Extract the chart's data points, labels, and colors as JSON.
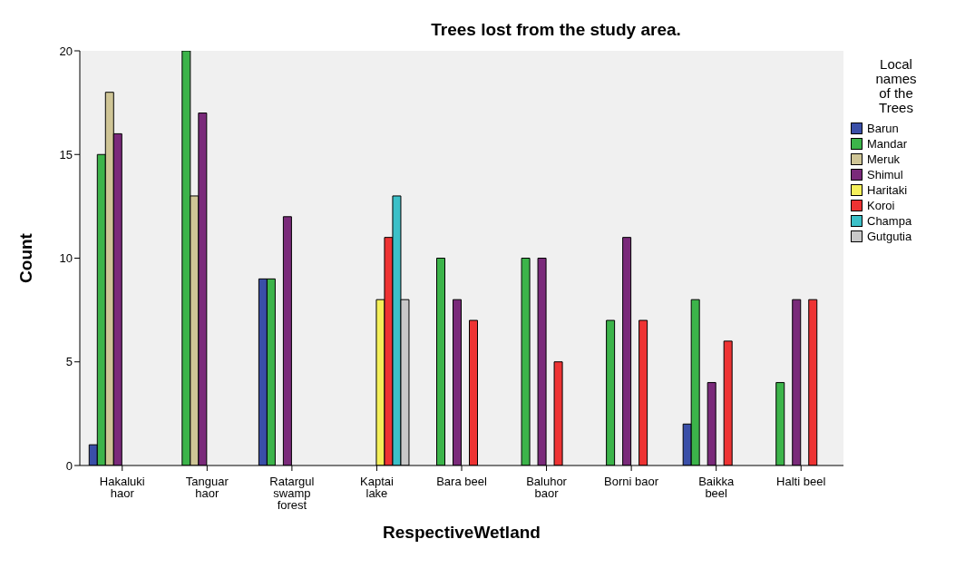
{
  "chart_data": {
    "type": "bar",
    "title": "Trees lost from the study area.",
    "xlabel": "RespectiveWetland",
    "ylabel": "Count",
    "legend_title": "Local names of the Trees",
    "categories": [
      "Hakaluki haor",
      "Tanguar haor",
      "Ratargul swamp forest",
      "Kaptai lake",
      "Bara beel",
      "Baluhor baor",
      "Borni baor",
      "Baikka beel",
      "Halti beel"
    ],
    "series": [
      {
        "name": "Barun",
        "color": "#3a4fa8",
        "values": [
          1,
          null,
          9,
          null,
          null,
          null,
          null,
          2,
          null
        ]
      },
      {
        "name": "Mandar",
        "color": "#3cb44a",
        "values": [
          15,
          20,
          9,
          null,
          10,
          10,
          7,
          8,
          4
        ]
      },
      {
        "name": "Meruk",
        "color": "#cfc596",
        "values": [
          18,
          13,
          null,
          null,
          null,
          null,
          null,
          null,
          null
        ]
      },
      {
        "name": "Shimul",
        "color": "#7a2a7a",
        "values": [
          16,
          17,
          12,
          null,
          8,
          10,
          11,
          4,
          8
        ]
      },
      {
        "name": "Haritaki",
        "color": "#f5f05a",
        "values": [
          null,
          null,
          null,
          8,
          null,
          null,
          null,
          null,
          null
        ]
      },
      {
        "name": "Koroi",
        "color": "#ee3333",
        "values": [
          null,
          null,
          null,
          11,
          7,
          5,
          7,
          6,
          8
        ]
      },
      {
        "name": "Champa",
        "color": "#3cc0c8",
        "values": [
          null,
          null,
          null,
          13,
          null,
          null,
          null,
          null,
          null
        ]
      },
      {
        "name": "Gutgutia",
        "color": "#c8c8c8",
        "values": [
          null,
          null,
          null,
          8,
          null,
          null,
          null,
          null,
          null
        ]
      }
    ],
    "ylim": [
      0,
      20
    ],
    "yticks": [
      0,
      5,
      10,
      15,
      20
    ],
    "legend": "right"
  }
}
